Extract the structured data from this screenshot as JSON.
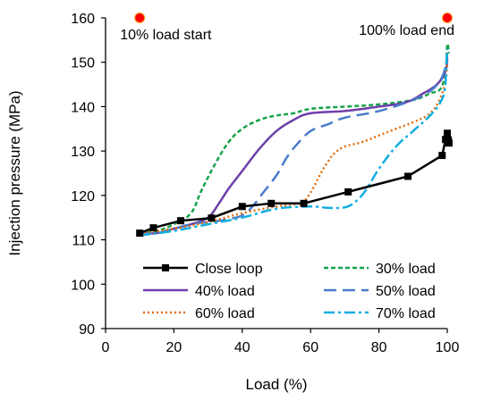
{
  "chart_data": {
    "type": "line",
    "title": "",
    "xlabel": "Load (%)",
    "ylabel": "Injection pressure (MPa)",
    "xlim": [
      0,
      100
    ],
    "ylim": [
      90,
      160
    ],
    "x_ticks": [
      0,
      20,
      40,
      60,
      80,
      100
    ],
    "y_ticks": [
      90,
      100,
      110,
      120,
      130,
      140,
      150,
      160
    ],
    "grid": false,
    "legend_placement": "bottom, two columns",
    "annotations": [
      {
        "text": "10% load start",
        "x": 10,
        "y": 160,
        "marker_color": "#ff0000"
      },
      {
        "text": "100% load end",
        "x": 100,
        "y": 160,
        "marker_color": "#ff0000"
      }
    ],
    "series": [
      {
        "name": "Close loop",
        "color": "#000000",
        "style": "solid-with-square-markers",
        "x": [
          10,
          14,
          22,
          31,
          40,
          48.5,
          58,
          71,
          88.5,
          98.5,
          99.5,
          100,
          100.5,
          100.3
        ],
        "y": [
          111.5,
          112.7,
          114.3,
          114.9,
          117.5,
          118.2,
          118.2,
          120.8,
          124.3,
          129,
          132.6,
          134,
          131.8,
          132.5
        ]
      },
      {
        "name": "30% load",
        "color": "#16a34a",
        "style": "short-dash",
        "x": [
          10,
          15,
          20,
          25,
          28,
          32,
          36,
          40,
          45,
          50,
          55,
          60,
          70,
          80,
          90,
          95,
          98,
          99.5,
          100,
          100.5
        ],
        "y": [
          111.5,
          112,
          113.5,
          116,
          121,
          127,
          132,
          135,
          137,
          138,
          138.5,
          139.5,
          140,
          140.5,
          141.5,
          143,
          144,
          148,
          154,
          152
        ]
      },
      {
        "name": "40% load",
        "color": "#6e3faa",
        "style": "solid",
        "x": [
          10,
          15,
          20,
          25,
          30,
          33,
          36,
          40,
          45,
          50,
          55,
          60,
          70,
          80,
          88,
          93,
          97,
          99.5,
          100
        ],
        "y": [
          111.5,
          111.5,
          112.5,
          113.5,
          115,
          118,
          121.5,
          125.5,
          130.5,
          134.5,
          137,
          138.5,
          139,
          140,
          141,
          143,
          145,
          148,
          151
        ]
      },
      {
        "name": "50% load",
        "color": "#4a7cc9",
        "style": "long-dash",
        "x": [
          10,
          15,
          20,
          25,
          30,
          35,
          40,
          43,
          46,
          50,
          53,
          56,
          60,
          65,
          70,
          80,
          90,
          95,
          98,
          99.5,
          100
        ],
        "y": [
          111.5,
          111.5,
          112.5,
          113.5,
          114,
          114.5,
          115.5,
          117.5,
          120.5,
          124.5,
          128.5,
          131.5,
          134.5,
          136,
          137.5,
          139,
          141.5,
          143.5,
          146,
          149,
          152
        ]
      },
      {
        "name": "60% load",
        "color": "#e46c0a",
        "style": "dotted",
        "x": [
          10,
          20,
          30,
          40,
          50,
          57,
          59,
          61,
          63,
          65,
          67,
          70,
          75,
          80,
          85,
          90,
          95,
          98,
          99.5,
          100
        ],
        "y": [
          111.5,
          112.5,
          114,
          116,
          117.5,
          118.2,
          119.5,
          122,
          125,
          127.5,
          129.5,
          131,
          132,
          133.5,
          135,
          136.5,
          138.5,
          142,
          146,
          150
        ]
      },
      {
        "name": "70% load",
        "color": "#13aee0",
        "style": "dash-dot",
        "x": [
          10,
          20,
          30,
          40,
          50,
          60,
          65,
          70,
          73,
          76,
          80,
          85,
          90,
          95,
          98,
          99.3,
          99.8,
          100
        ],
        "y": [
          111,
          112,
          113.5,
          115,
          117,
          117.5,
          117.2,
          117.3,
          118.5,
          121,
          126,
          131,
          134.5,
          138,
          141,
          144,
          150,
          153
        ]
      }
    ]
  }
}
